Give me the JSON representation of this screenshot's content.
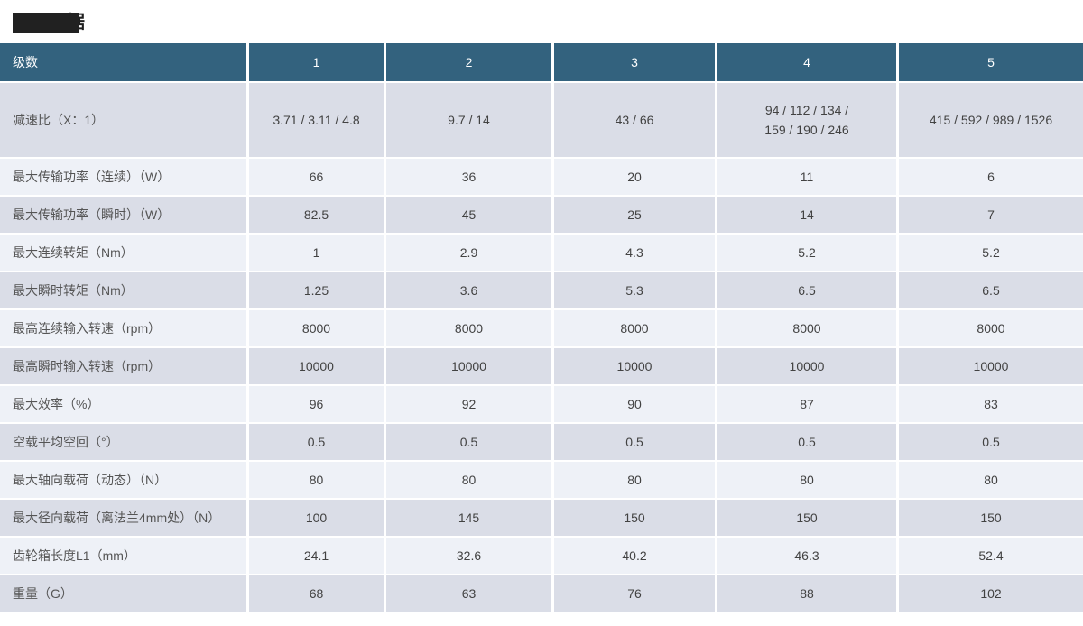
{
  "title": {
    "visible_char": "据"
  },
  "colors": {
    "header_bg": "#33627e",
    "row_dark": "#dadde7",
    "row_light": "#eef1f7",
    "label_color": "#555555",
    "value_color": "#424242",
    "redaction": "#212121"
  },
  "table": {
    "header": {
      "label": "级数",
      "columns": [
        "1",
        "2",
        "3",
        "4",
        "5"
      ]
    },
    "rows": [
      {
        "label": "减速比（X：1）",
        "values": [
          "3.71 / 3.11 / 4.8",
          "9.7 / 14",
          "43 / 66",
          "94 / 112 / 134 /\n159 / 190 / 246",
          "415 / 592 / 989 / 1526"
        ]
      },
      {
        "label": "最大传输功率（连续）（W）",
        "values": [
          "66",
          "36",
          "20",
          "11",
          "6"
        ]
      },
      {
        "label": "最大传输功率（瞬时）（W）",
        "values": [
          "82.5",
          "45",
          "25",
          "14",
          "7"
        ]
      },
      {
        "label": "最大连续转矩（Nm）",
        "values": [
          "1",
          "2.9",
          "4.3",
          "5.2",
          "5.2"
        ]
      },
      {
        "label": "最大瞬时转矩（Nm）",
        "values": [
          "1.25",
          "3.6",
          "5.3",
          "6.5",
          "6.5"
        ]
      },
      {
        "label": "最高连续输入转速（rpm）",
        "values": [
          "8000",
          "8000",
          "8000",
          "8000",
          "8000"
        ]
      },
      {
        "label": "最高瞬时输入转速（rpm）",
        "values": [
          "10000",
          "10000",
          "10000",
          "10000",
          "10000"
        ]
      },
      {
        "label": "最大效率（%）",
        "values": [
          "96",
          "92",
          "90",
          "87",
          "83"
        ]
      },
      {
        "label": "空载平均空回（°）",
        "values": [
          "0.5",
          "0.5",
          "0.5",
          "0.5",
          "0.5"
        ]
      },
      {
        "label": "最大轴向载荷（动态）（N）",
        "values": [
          "80",
          "80",
          "80",
          "80",
          "80"
        ]
      },
      {
        "label": "最大径向载荷（离法兰4mm处）（N）",
        "values": [
          "100",
          "145",
          "150",
          "150",
          "150"
        ]
      },
      {
        "label": "齿轮箱长度L1（mm）",
        "values": [
          "24.1",
          "32.6",
          "40.2",
          "46.3",
          "52.4"
        ]
      },
      {
        "label": "重量（G）",
        "values": [
          "68",
          "63",
          "76",
          "88",
          "102"
        ]
      }
    ]
  }
}
